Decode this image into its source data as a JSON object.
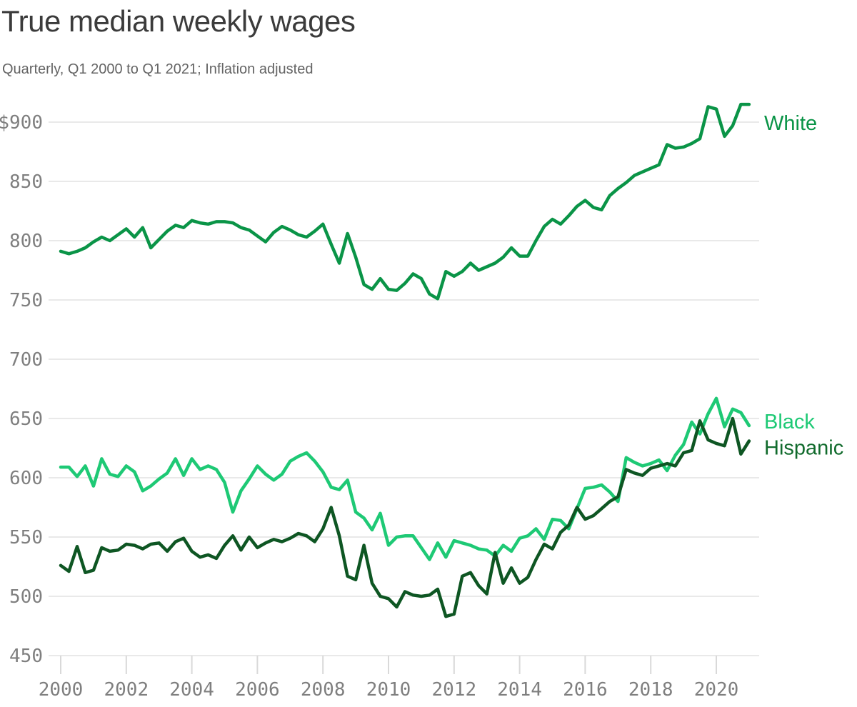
{
  "header": {
    "title": "True median weekly wages",
    "subtitle": "Quarterly, Q1 2000 to Q1 2021; Inflation adjusted"
  },
  "colors": {
    "white_series": "#0a9447",
    "black_series": "#1ec975",
    "hispanic_series": "#0e5623",
    "hispanic_label": "#116b2d",
    "grid": "#e9e9e9",
    "tick": "#d9d9d9",
    "axis_text": "#7f7f7f",
    "title_text": "#3b3b3b",
    "subtitle_text": "#646464"
  },
  "chart_data": {
    "type": "line",
    "title": "True median weekly wages",
    "subtitle": "Quarterly, Q1 2000 to Q1 2021; Inflation adjusted",
    "x_unit": "year (quarterly steps)",
    "x_start": 2000.0,
    "x_step": 0.25,
    "x_end": 2021.0,
    "xlim": [
      2000,
      2021.35
    ],
    "ylim": [
      450,
      925
    ],
    "grid": true,
    "legend_position": "right-end-labels",
    "y_ticks": [
      450,
      500,
      550,
      600,
      650,
      700,
      750,
      800,
      850,
      900
    ],
    "y_tick_labels": [
      "450",
      "500",
      "550",
      "600",
      "650",
      "700",
      "750",
      "800",
      "850",
      "$900"
    ],
    "x_ticks": [
      2000,
      2002,
      2004,
      2006,
      2008,
      2010,
      2012,
      2014,
      2016,
      2018,
      2020
    ],
    "x_tick_labels": [
      "2000",
      "2002",
      "2004",
      "2006",
      "2008",
      "2010",
      "2012",
      "2014",
      "2016",
      "2018",
      "2020"
    ],
    "series": [
      {
        "name": "White",
        "color": "#0a9447",
        "label_color": "#0a9447",
        "label_dy": 36,
        "values": [
          791,
          789,
          791,
          794,
          799,
          803,
          800,
          805,
          810,
          803,
          811,
          794,
          801,
          808,
          813,
          811,
          817,
          815,
          814,
          816,
          816,
          815,
          811,
          809,
          804,
          799,
          807,
          812,
          809,
          805,
          803,
          808,
          814,
          797,
          781,
          806,
          786,
          763,
          759,
          768,
          759,
          758,
          764,
          772,
          768,
          755,
          751,
          774,
          770,
          774,
          781,
          775,
          778,
          781,
          786,
          794,
          787,
          787,
          800,
          812,
          818,
          814,
          821,
          829,
          834,
          828,
          826,
          838,
          844,
          849,
          855,
          858,
          861,
          864,
          881,
          878,
          879,
          882,
          886,
          913,
          911,
          888,
          897,
          915,
          915
        ]
      },
      {
        "name": "Black",
        "color": "#1ec975",
        "label_color": "#1ec975",
        "label_dy": 4,
        "values": [
          609,
          609,
          601,
          610,
          593,
          616,
          603,
          601,
          610,
          605,
          589,
          593,
          599,
          604,
          616,
          602,
          616,
          607,
          610,
          607,
          596,
          571,
          589,
          599,
          610,
          603,
          598,
          603,
          614,
          618,
          621,
          614,
          605,
          592,
          590,
          598,
          571,
          566,
          556,
          570,
          543,
          550,
          551,
          551,
          541,
          531,
          545,
          533,
          547,
          545,
          543,
          540,
          539,
          534,
          543,
          538,
          549,
          551,
          557,
          548,
          565,
          564,
          557,
          574,
          591,
          592,
          594,
          588,
          580,
          617,
          613,
          610,
          612,
          615,
          606,
          619,
          628,
          647,
          637,
          654,
          667,
          643,
          658,
          655,
          644
        ]
      },
      {
        "name": "Hispanic",
        "color": "#0e5623",
        "label_color": "#116b2d",
        "label_dy": 19,
        "values": [
          526,
          521,
          542,
          520,
          522,
          541,
          538,
          539,
          544,
          543,
          540,
          544,
          545,
          538,
          546,
          549,
          538,
          533,
          535,
          532,
          543,
          551,
          539,
          550,
          541,
          545,
          548,
          546,
          549,
          553,
          551,
          546,
          557,
          575,
          551,
          517,
          514,
          543,
          511,
          500,
          498,
          491,
          504,
          501,
          500,
          501,
          506,
          483,
          485,
          517,
          520,
          509,
          502,
          537,
          511,
          524,
          511,
          516,
          531,
          544,
          540,
          554,
          560,
          575,
          565,
          568,
          574,
          580,
          584,
          607,
          604,
          602,
          608,
          610,
          612,
          610,
          621,
          623,
          648,
          632,
          629,
          627,
          650,
          620,
          631
        ]
      }
    ]
  }
}
